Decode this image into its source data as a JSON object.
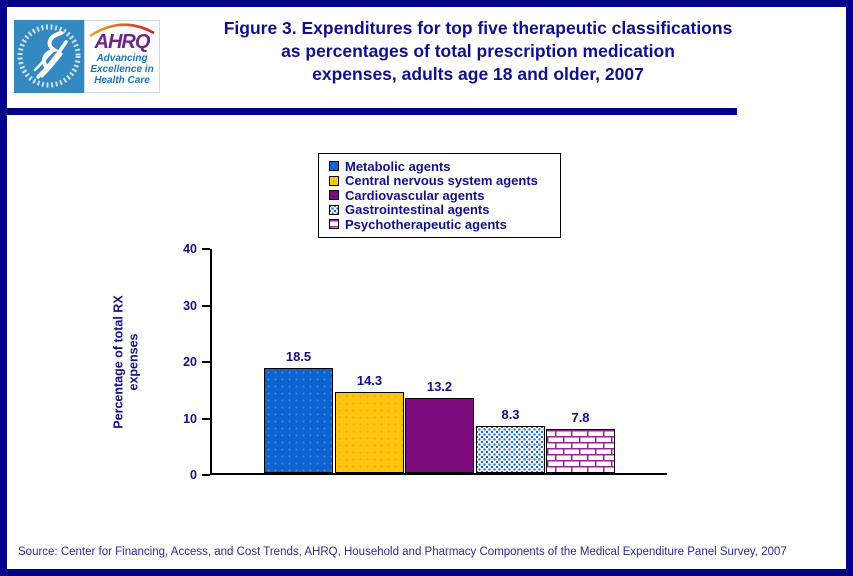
{
  "header": {
    "title_lines": [
      "Figure 3. Expenditures for top five therapeutic classifications",
      "as percentages of total prescription medication",
      "expenses, adults age 18 and older, 2007"
    ],
    "logo": {
      "hhs_seal": "U.S. Department of Health & Human Services seal",
      "ahrq_acronym": "AHRQ",
      "ahrq_tagline_lines": [
        "Advancing",
        "Excellence in",
        "Health Care"
      ]
    }
  },
  "colors": {
    "frame_navy": "#010189",
    "text_navy": "#10108c",
    "bar_blue": "#0d63cf",
    "bar_gold": "#ffc40d",
    "bar_purple": "#7d0b7d",
    "pattern_dot_blue": "#1565d4",
    "pattern_brick_magenta": "#9c1f9c",
    "hhs_logo_blue": "#3589c1",
    "ahrq_logo_purple": "#6e2585",
    "ahrq_tagline_blue": "#1b75bc"
  },
  "chart_data": {
    "type": "bar",
    "title": "Figure 3. Expenditures for top five therapeutic classifications as percentages of total prescription medication expenses, adults age 18 and older, 2007",
    "categories": [
      "Metabolic agents",
      "Central nervous system agents",
      "Cardiovascular agents",
      "Gastrointestinal agents",
      "Psychotherapeutic agents"
    ],
    "values": [
      18.5,
      14.3,
      13.2,
      8.3,
      7.8
    ],
    "bar_styles": [
      "solid-blue",
      "solid-gold",
      "solid-purple",
      "dotted-blue",
      "brick-magenta"
    ],
    "xlabel": "",
    "ylabel": "Percentage of total RX expenses",
    "ylabel_lines": [
      "Percentage of total RX",
      "expenses"
    ],
    "ylim": [
      0,
      40
    ],
    "yticks": [
      0,
      10,
      20,
      30,
      40
    ],
    "grid": false,
    "legend_position": "top-center"
  },
  "footer": {
    "source": "Source: Center for Financing, Access, and Cost Trends, AHRQ, Household and Pharmacy Components of the Medical Expenditure Panel Survey, 2007"
  }
}
